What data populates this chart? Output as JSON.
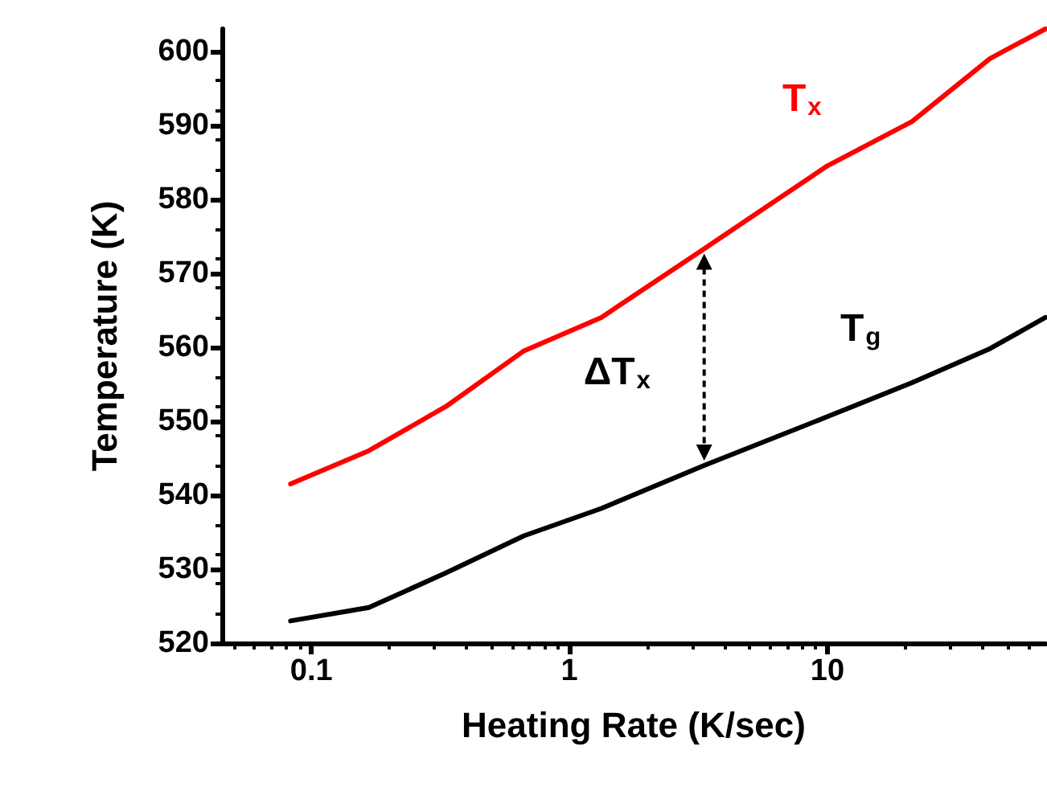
{
  "chart_data": {
    "type": "line",
    "xlabel": "Heating Rate (K/sec)",
    "ylabel": "Temperature (K)",
    "log": "x",
    "xlim": [
      0.045,
      70
    ],
    "xticks": [
      0.1,
      1,
      10
    ],
    "ylim": [
      520,
      603
    ],
    "yticks": [
      520,
      530,
      540,
      550,
      560,
      570,
      580,
      590,
      600
    ],
    "grid": false,
    "legend": false,
    "marker": "none",
    "line_style": "solid",
    "series": [
      {
        "name": "T$_{x}$",
        "color": "#ff0000",
        "x": [
          0.083,
          0.167,
          0.333,
          0.667,
          1.33,
          3.33,
          10,
          21.3,
          42.7,
          70
        ],
        "values": [
          541.5,
          546,
          552,
          559.5,
          564,
          573.3,
          584.5,
          590.5,
          599,
          603
        ]
      },
      {
        "name": "T$_{g}$",
        "color": "#000000",
        "x": [
          0.083,
          0.167,
          0.333,
          0.667,
          1.33,
          3.33,
          10,
          21.3,
          42.7,
          70
        ],
        "values": [
          523,
          524.8,
          529.5,
          534.5,
          538.2,
          544,
          550.6,
          555.2,
          559.8,
          564
        ]
      }
    ],
    "annotations": [
      "ΔT$_{x}$"
    ]
  }
}
